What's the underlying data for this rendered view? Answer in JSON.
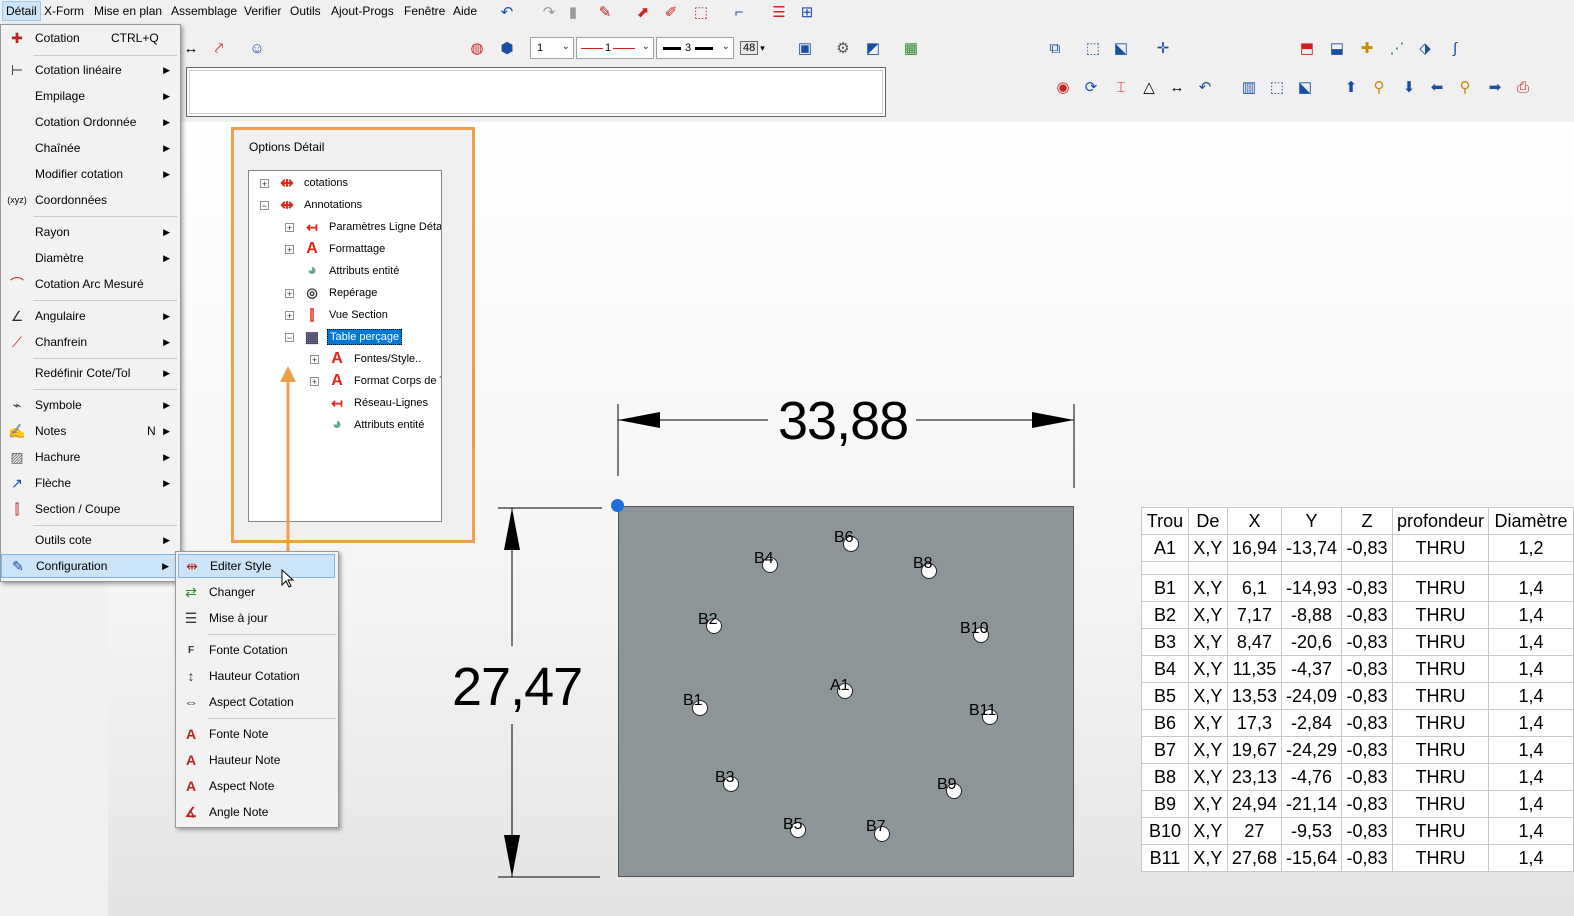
{
  "menubar": {
    "items": [
      "Détail",
      "X-Form",
      "Mise en plan",
      "Assemblage",
      "Verifier",
      "Outils",
      "Ajout-Progs",
      "Fenêtre",
      "Aide"
    ]
  },
  "toolbar": {
    "combo_line_number": "1",
    "combo_line_style": "1",
    "combo_line_width": "3",
    "combo_size": "48"
  },
  "detail_menu": {
    "items": [
      {
        "label": "Cotation",
        "shortcut": "CTRL+Q",
        "icon": "cotation-icon"
      },
      {
        "label": "Cotation linéaire",
        "icon": "linear-dim-icon"
      },
      {
        "label": "Empilage",
        "icon": ""
      },
      {
        "label": "Cotation Ordonnée",
        "icon": ""
      },
      {
        "label": "Chaînée",
        "icon": ""
      },
      {
        "label": "Modifier cotation",
        "icon": ""
      },
      {
        "label": "Coordonnées",
        "icon": "coordinates-icon",
        "icon_text": "(xyz)"
      },
      {
        "label": "Rayon",
        "icon": ""
      },
      {
        "label": "Diamètre",
        "icon": ""
      },
      {
        "label": "Cotation Arc Mesuré",
        "icon": "arc-dim-icon"
      },
      {
        "label": "Angulaire",
        "icon": "angular-icon"
      },
      {
        "label": "Chanfrein",
        "icon": "chamfer-icon"
      },
      {
        "label": "Redéfinir Cote/Tol",
        "icon": ""
      },
      {
        "label": "Symbole",
        "icon": "symbol-icon"
      },
      {
        "label": "Notes",
        "shortcut": "N",
        "icon": "notes-icon"
      },
      {
        "label": "Hachure",
        "icon": "hatch-icon"
      },
      {
        "label": "Flèche",
        "icon": "arrow-icon"
      },
      {
        "label": "Section / Coupe",
        "icon": "section-icon"
      },
      {
        "label": "Outils cote",
        "icon": ""
      },
      {
        "label": "Configuration",
        "icon": "configuration-icon"
      }
    ]
  },
  "config_submenu": {
    "items": [
      {
        "label": "Editer Style",
        "icon": "edit-style-icon"
      },
      {
        "label": "Changer",
        "icon": "change-icon"
      },
      {
        "label": "Mise à jour",
        "icon": "update-icon"
      },
      {
        "label": "Fonte Cotation",
        "icon": "font-dim-icon"
      },
      {
        "label": "Hauteur Cotation",
        "icon": "height-dim-icon"
      },
      {
        "label": "Aspect Cotation",
        "icon": "aspect-dim-icon"
      },
      {
        "label": "Fonte Note",
        "icon": "font-note-icon"
      },
      {
        "label": "Hauteur Note",
        "icon": "height-note-icon"
      },
      {
        "label": "Aspect Note",
        "icon": "aspect-note-icon"
      },
      {
        "label": "Angle Note",
        "icon": "angle-note-icon"
      }
    ]
  },
  "options_panel": {
    "title": "Options Détail",
    "tree": [
      {
        "label": "cotations",
        "expander": "+"
      },
      {
        "label": "Annotations",
        "expander": "−"
      },
      {
        "label": "Paramètres Ligne Détail",
        "expander": "+"
      },
      {
        "label": "Formattage",
        "expander": "+"
      },
      {
        "label": "Attributs entité",
        "expander": ""
      },
      {
        "label": "Repérage",
        "expander": "+"
      },
      {
        "label": "Vue Section",
        "expander": "+"
      },
      {
        "label": "Table perçage",
        "expander": "−",
        "selected": true
      },
      {
        "label": "Fontes/Style..",
        "expander": "+"
      },
      {
        "label": "Format Corps de T",
        "expander": "+"
      },
      {
        "label": "Réseau-Lignes",
        "expander": ""
      },
      {
        "label": "Attributs entité",
        "expander": ""
      }
    ]
  },
  "drawing": {
    "dim_width": "33,88",
    "dim_height": "27,47",
    "hole_labels": [
      "B6",
      "B4",
      "B8",
      "B2",
      "B10",
      "A1",
      "B1",
      "B11",
      "B3",
      "B9",
      "B5",
      "B7"
    ]
  },
  "hole_table": {
    "headers": [
      "Trou",
      "De",
      "X",
      "Y",
      "Z",
      "profondeur",
      "Diamètre"
    ],
    "rows": [
      [
        "A1",
        "X,Y",
        "16,94",
        "-13,74",
        "-0,83",
        "THRU",
        "1,2"
      ],
      [
        "",
        "",
        "",
        "",
        "",
        "",
        ""
      ],
      [
        "B1",
        "X,Y",
        "6,1",
        "-14,93",
        "-0,83",
        "THRU",
        "1,4"
      ],
      [
        "B2",
        "X,Y",
        "7,17",
        "-8,88",
        "-0,83",
        "THRU",
        "1,4"
      ],
      [
        "B3",
        "X,Y",
        "8,47",
        "-20,6",
        "-0,83",
        "THRU",
        "1,4"
      ],
      [
        "B4",
        "X,Y",
        "11,35",
        "-4,37",
        "-0,83",
        "THRU",
        "1,4"
      ],
      [
        "B5",
        "X,Y",
        "13,53",
        "-24,09",
        "-0,83",
        "THRU",
        "1,4"
      ],
      [
        "B6",
        "X,Y",
        "17,3",
        "-2,84",
        "-0,83",
        "THRU",
        "1,4"
      ],
      [
        "B7",
        "X,Y",
        "19,67",
        "-24,29",
        "-0,83",
        "THRU",
        "1,4"
      ],
      [
        "B8",
        "X,Y",
        "23,13",
        "-4,76",
        "-0,83",
        "THRU",
        "1,4"
      ],
      [
        "B9",
        "X,Y",
        "24,94",
        "-21,14",
        "-0,83",
        "THRU",
        "1,4"
      ],
      [
        "B10",
        "X,Y",
        "27",
        "-9,53",
        "-0,83",
        "THRU",
        "1,4"
      ],
      [
        "B11",
        "X,Y",
        "27,68",
        "-15,64",
        "-0,83",
        "THRU",
        "1,4"
      ]
    ]
  },
  "colors": {
    "highlight": "#cce4f7",
    "accent_frame": "#f0a04b",
    "part_fill": "#8e9599",
    "selection": "#0078d7"
  }
}
